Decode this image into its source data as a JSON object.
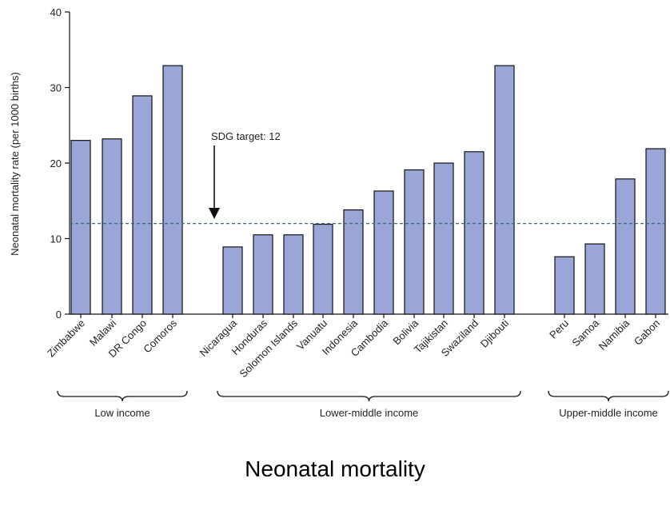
{
  "caption": "Neonatal mortality",
  "chart_data": {
    "type": "bar",
    "title": "",
    "xlabel": "",
    "ylabel": "Neonatal mortality rate (per 1000 births)",
    "ylim": [
      0,
      40
    ],
    "yticks": [
      0,
      10,
      20,
      30,
      40
    ],
    "grid": false,
    "bar_color": "#9aa6d8",
    "categories": [
      "Zimbabwe",
      "Malawi",
      "DR Congo",
      "Comoros",
      "Nicaragua",
      "Honduras",
      "Solomon Islands",
      "Vanuatu",
      "Indonesia",
      "Cambodia",
      "Bolivia",
      "Tajikistan",
      "Swaziland",
      "Djibouti",
      "Peru",
      "Samoa",
      "Namibia",
      "Gabon"
    ],
    "values": [
      23,
      23.2,
      28.9,
      32.9,
      8.9,
      10.5,
      10.5,
      11.9,
      13.8,
      16.3,
      19.1,
      20,
      21.5,
      32.9,
      7.6,
      9.3,
      17.9,
      21.9
    ],
    "groups": [
      {
        "label": "Low income",
        "members": [
          "Zimbabwe",
          "Malawi",
          "DR Congo",
          "Comoros"
        ]
      },
      {
        "label": "Lower-middle income",
        "members": [
          "Nicaragua",
          "Honduras",
          "Solomon Islands",
          "Vanuatu",
          "Indonesia",
          "Cambodia",
          "Bolivia",
          "Tajikistan",
          "Swaziland",
          "Djibouti"
        ]
      },
      {
        "label": "Upper-middle income",
        "members": [
          "Peru",
          "Samoa",
          "Namibia",
          "Gabon"
        ]
      }
    ],
    "reference_line": {
      "value": 12,
      "label": "SDG target: 12",
      "color": "#2f6f78",
      "style": "dashed"
    }
  }
}
